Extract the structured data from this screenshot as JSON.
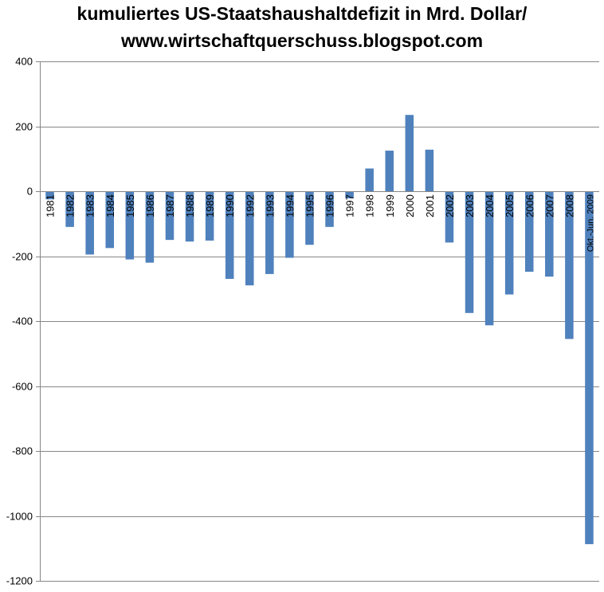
{
  "title_line1": "kumuliertes US-Staatshaushaltdefizit in Mrd. Dollar/",
  "title_line2": "www.wirtschaftquerschuss.blogspot.com",
  "chart_data": {
    "type": "bar",
    "title": "kumuliertes US-Staatshaushaltdefizit in Mrd. Dollar/ www.wirtschaftquerschuss.blogspot.com",
    "xlabel": "",
    "ylabel": "",
    "ylim": [
      -1200,
      400
    ],
    "yticks": [
      400,
      200,
      0,
      -200,
      -400,
      -600,
      -800,
      -1000,
      -1200
    ],
    "grid": true,
    "bar_color": "#4F81BD",
    "categories": [
      "1981",
      "1982",
      "1983",
      "1984",
      "1985",
      "1986",
      "1987",
      "1988",
      "1989",
      "1990",
      "1992",
      "1993",
      "1994",
      "1995",
      "1996",
      "1997",
      "1998",
      "1999",
      "2000",
      "2001",
      "2002",
      "2003",
      "2004",
      "2005",
      "2006",
      "2007",
      "2008",
      "Okt.-Jun. 2009"
    ],
    "values": [
      -25,
      -110,
      -195,
      -175,
      -210,
      -220,
      -150,
      -155,
      -152,
      -270,
      -290,
      -255,
      -205,
      -165,
      -110,
      -22,
      70,
      125,
      235,
      128,
      -158,
      -375,
      -413,
      -318,
      -248,
      -263,
      -455,
      -1087
    ]
  }
}
